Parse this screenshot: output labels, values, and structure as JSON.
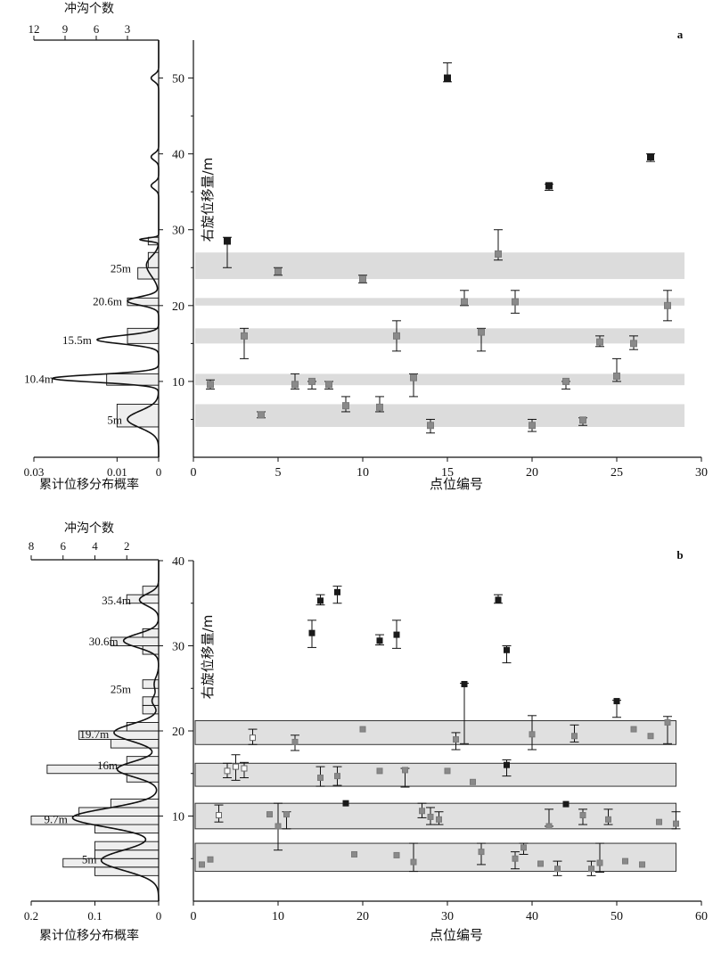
{
  "chart_data": [
    {
      "panel_label": "a",
      "type": "scatter",
      "xlabel": "点位编号",
      "ylabel": "右旋位移量/m",
      "xlim": [
        0,
        30
      ],
      "ylim": [
        0,
        55
      ],
      "x_ticks": [
        0,
        5,
        10,
        15,
        20,
        25,
        30
      ],
      "y_ticks": [
        10,
        20,
        30,
        40,
        50
      ],
      "bands": [
        [
          4,
          7
        ],
        [
          9.5,
          11
        ],
        [
          15,
          17
        ],
        [
          20,
          21
        ],
        [
          23.5,
          27
        ]
      ],
      "band_x_range": [
        0,
        29
      ],
      "series": [
        {
          "marker": "gray-square",
          "points": [
            {
              "x": 1,
              "y": 9.6,
              "lo": 9.0,
              "hi": 10.2
            },
            {
              "x": 3,
              "y": 16.0,
              "lo": 13.0,
              "hi": 17.0
            },
            {
              "x": 4,
              "y": 5.6,
              "lo": 5.2,
              "hi": 6.0
            },
            {
              "x": 5,
              "y": 24.5,
              "lo": 24.0,
              "hi": 25.0
            },
            {
              "x": 6,
              "y": 9.6,
              "lo": 9.0,
              "hi": 11.0
            },
            {
              "x": 7,
              "y": 10.0,
              "lo": 9.0,
              "hi": 10.0
            },
            {
              "x": 8,
              "y": 9.6,
              "lo": 9.0,
              "hi": 10.0
            },
            {
              "x": 9,
              "y": 6.8,
              "lo": 6.0,
              "hi": 8.0
            },
            {
              "x": 10,
              "y": 23.5,
              "lo": 23.0,
              "hi": 24.0
            },
            {
              "x": 11,
              "y": 6.6,
              "lo": 6.0,
              "hi": 8.0
            },
            {
              "x": 12,
              "y": 16.0,
              "lo": 14.0,
              "hi": 18.0
            },
            {
              "x": 13,
              "y": 10.5,
              "lo": 8.0,
              "hi": 11.0
            },
            {
              "x": 14,
              "y": 4.2,
              "lo": 3.2,
              "hi": 5.0
            },
            {
              "x": 16,
              "y": 20.5,
              "lo": 20.0,
              "hi": 22.0
            },
            {
              "x": 17,
              "y": 16.5,
              "lo": 14.0,
              "hi": 17.0
            },
            {
              "x": 18,
              "y": 26.8,
              "lo": 26.0,
              "hi": 30.0
            },
            {
              "x": 19,
              "y": 20.5,
              "lo": 19.0,
              "hi": 22.0
            },
            {
              "x": 20,
              "y": 4.2,
              "lo": 3.4,
              "hi": 5.0
            },
            {
              "x": 22,
              "y": 10.0,
              "lo": 9.0,
              "hi": 10.0
            },
            {
              "x": 23,
              "y": 4.9,
              "lo": 4.2,
              "hi": 5.2
            },
            {
              "x": 24,
              "y": 15.2,
              "lo": 14.6,
              "hi": 16.0
            },
            {
              "x": 25,
              "y": 10.7,
              "lo": 10.0,
              "hi": 13.0
            },
            {
              "x": 26,
              "y": 15.0,
              "lo": 14.2,
              "hi": 16.0
            },
            {
              "x": 28,
              "y": 20.0,
              "lo": 18.0,
              "hi": 22.0
            }
          ]
        },
        {
          "marker": "black-square",
          "points": [
            {
              "x": 2,
              "y": 28.5,
              "lo": 25.0,
              "hi": 29.0
            },
            {
              "x": 15,
              "y": 50.0,
              "lo": 49.5,
              "hi": 52.0
            },
            {
              "x": 21,
              "y": 35.8,
              "lo": 35.2,
              "hi": 36.0
            },
            {
              "x": 27,
              "y": 39.6,
              "lo": 39.0,
              "hi": 40.0
            }
          ]
        }
      ],
      "side_plot": {
        "top_axis_label": "冲沟个数",
        "bottom_axis_label": "累计位移分布概率",
        "top_ticks": [
          12,
          9,
          6,
          3
        ],
        "bottom_ticks": [
          "0.03",
          "0.01",
          "0"
        ],
        "bottom_tick_values": [
          0.03,
          0.01,
          0
        ],
        "bottom_max": 0.03,
        "top_max": 12,
        "histogram": [
          {
            "from": 4,
            "to": 7,
            "count": 4
          },
          {
            "from": 9.5,
            "to": 11,
            "count": 5
          },
          {
            "from": 15,
            "to": 17,
            "count": 3
          },
          {
            "from": 20,
            "to": 21,
            "count": 3
          },
          {
            "from": 23.5,
            "to": 25,
            "count": 2
          },
          {
            "from": 25,
            "to": 27,
            "count": 1
          },
          {
            "from": 28,
            "to": 29,
            "count": 1
          }
        ],
        "peaks": [
          {
            "center": 5,
            "height": 0.0075,
            "width": 1.1
          },
          {
            "center": 10.4,
            "height": 0.0255,
            "width": 0.5
          },
          {
            "center": 15.5,
            "height": 0.0148,
            "width": 0.55
          },
          {
            "center": 20.6,
            "height": 0.0075,
            "width": 0.55
          },
          {
            "center": 24.5,
            "height": 0.0018,
            "width": 1.1
          },
          {
            "center": 25.8,
            "height": 0.0018,
            "width": 0.9
          },
          {
            "center": 28.7,
            "height": 0.0045,
            "width": 0.2
          },
          {
            "center": 35.8,
            "height": 0.0018,
            "width": 0.45
          },
          {
            "center": 39.6,
            "height": 0.0018,
            "width": 0.45
          },
          {
            "center": 50,
            "height": 0.0018,
            "width": 0.45
          }
        ],
        "peak_labels": [
          "25m",
          "20.6m",
          "15.5m",
          "10.4m",
          "5m"
        ],
        "peak_label_values": [
          25,
          20.6,
          15.5,
          10.4,
          5
        ]
      }
    },
    {
      "panel_label": "b",
      "type": "scatter",
      "xlabel": "点位编号",
      "ylabel": "右旋位移量/m",
      "xlim": [
        0,
        60
      ],
      "ylim": [
        0,
        40
      ],
      "x_ticks": [
        0,
        10,
        20,
        30,
        40,
        50,
        60
      ],
      "y_ticks": [
        10,
        20,
        30,
        40
      ],
      "bands": [
        [
          3.5,
          6.8
        ],
        [
          8.5,
          11.5
        ],
        [
          13.5,
          16.2
        ],
        [
          18.4,
          21.2
        ]
      ],
      "band_x_range": [
        0,
        57
      ],
      "series": [
        {
          "marker": "gray-square",
          "points": [
            {
              "x": 1,
              "y": 4.3
            },
            {
              "x": 2,
              "y": 4.9
            },
            {
              "x": 9,
              "y": 10.2
            },
            {
              "x": 10,
              "y": 8.8,
              "lo": 6,
              "hi": 11.5
            },
            {
              "x": 11,
              "y": 10.2,
              "lo": 8.5,
              "hi": 10.5
            },
            {
              "x": 12,
              "y": 18.7,
              "lo": 17.7,
              "hi": 19.5
            },
            {
              "x": 15,
              "y": 14.5,
              "lo": 13.5,
              "hi": 15.8
            },
            {
              "x": 17,
              "y": 14.7,
              "lo": 13.6,
              "hi": 15.8
            },
            {
              "x": 19,
              "y": 5.5
            },
            {
              "x": 20,
              "y": 20.2
            },
            {
              "x": 22,
              "y": 15.3
            },
            {
              "x": 24,
              "y": 5.4
            },
            {
              "x": 25,
              "y": 15.4,
              "lo": 13.4,
              "hi": 15.6
            },
            {
              "x": 26,
              "y": 4.6,
              "lo": 3.5,
              "hi": 6.8
            },
            {
              "x": 27,
              "y": 10.6,
              "lo": 9.8,
              "hi": 11.5
            },
            {
              "x": 28,
              "y": 9.9,
              "lo": 9,
              "hi": 11
            },
            {
              "x": 29,
              "y": 9.6,
              "lo": 9,
              "hi": 10.5
            },
            {
              "x": 30,
              "y": 15.3
            },
            {
              "x": 31,
              "y": 19.0,
              "lo": 17.8,
              "hi": 19.8
            },
            {
              "x": 33,
              "y": 14.0
            },
            {
              "x": 34,
              "y": 5.8,
              "lo": 4.3,
              "hi": 6.8
            },
            {
              "x": 38,
              "y": 5.0,
              "lo": 3.8,
              "hi": 5.8
            },
            {
              "x": 39,
              "y": 6.3,
              "lo": 5.5,
              "hi": 6.8
            },
            {
              "x": 40,
              "y": 19.6,
              "lo": 17.8,
              "hi": 21.8
            },
            {
              "x": 41,
              "y": 4.4
            },
            {
              "x": 42,
              "y": 8.8,
              "lo": 8.8,
              "hi": 10.8
            },
            {
              "x": 43,
              "y": 3.8,
              "lo": 3.0,
              "hi": 4.7
            },
            {
              "x": 45,
              "y": 19.4,
              "lo": 18.7,
              "hi": 20.7
            },
            {
              "x": 46,
              "y": 10.1,
              "lo": 9.0,
              "hi": 10.8
            },
            {
              "x": 47,
              "y": 3.8,
              "lo": 3.0,
              "hi": 4.7
            },
            {
              "x": 48,
              "y": 4.5,
              "lo": 3.4,
              "hi": 6.8
            },
            {
              "x": 49,
              "y": 9.6,
              "lo": 9.0,
              "hi": 10.8
            },
            {
              "x": 51,
              "y": 4.7
            },
            {
              "x": 52,
              "y": 20.2
            },
            {
              "x": 53,
              "y": 4.3
            },
            {
              "x": 54,
              "y": 19.4
            },
            {
              "x": 55,
              "y": 9.3
            },
            {
              "x": 56,
              "y": 21.0,
              "lo": 18.5,
              "hi": 21.7
            },
            {
              "x": 57,
              "y": 9.1,
              "lo": 8.5,
              "hi": 10.5
            }
          ]
        },
        {
          "marker": "open-square",
          "points": [
            {
              "x": 3,
              "y": 10.1,
              "lo": 9.3,
              "hi": 11.3
            },
            {
              "x": 4,
              "y": 15.3,
              "lo": 14.5,
              "hi": 16.2
            },
            {
              "x": 5,
              "y": 15.8,
              "lo": 14.2,
              "hi": 17.2
            },
            {
              "x": 6,
              "y": 15.6,
              "lo": 14.5,
              "hi": 16.3
            },
            {
              "x": 7,
              "y": 19.2,
              "lo": 18.4,
              "hi": 20.2
            }
          ]
        },
        {
          "marker": "black-square",
          "points": [
            {
              "x": 14,
              "y": 31.5,
              "lo": 29.8,
              "hi": 33.0
            },
            {
              "x": 15,
              "y": 35.3,
              "lo": 34.8,
              "hi": 36.0
            },
            {
              "x": 17,
              "y": 36.3,
              "lo": 35.0,
              "hi": 37.0
            },
            {
              "x": 18,
              "y": 11.5
            },
            {
              "x": 22,
              "y": 30.6,
              "lo": 30.1,
              "hi": 31.3
            },
            {
              "x": 24,
              "y": 31.3,
              "lo": 29.7,
              "hi": 33.0
            },
            {
              "x": 32,
              "y": 25.5,
              "lo": 18.5,
              "hi": 25.6
            },
            {
              "x": 36,
              "y": 35.4,
              "lo": 35.0,
              "hi": 36.0
            },
            {
              "x": 37,
              "y": 29.5,
              "lo": 28.0,
              "hi": 30.0
            },
            {
              "x": 37,
              "y": 16.0,
              "lo": 14.7,
              "hi": 16.6
            },
            {
              "x": 44,
              "y": 11.4
            },
            {
              "x": 50,
              "y": 23.5,
              "lo": 21.6,
              "hi": 23.6
            }
          ]
        }
      ],
      "side_plot": {
        "top_axis_label": "冲沟个数",
        "bottom_axis_label": "累计位移分布概率",
        "top_ticks": [
          8,
          6,
          4,
          2
        ],
        "bottom_ticks": [
          "0.2",
          "0.1",
          "0"
        ],
        "bottom_tick_values": [
          0.2,
          0.1,
          0
        ],
        "bottom_max": 0.2,
        "top_max": 8,
        "histogram": [
          {
            "from": 3,
            "to": 4,
            "count": 4
          },
          {
            "from": 4,
            "to": 5,
            "count": 6
          },
          {
            "from": 5,
            "to": 6,
            "count": 4
          },
          {
            "from": 6,
            "to": 7,
            "count": 4
          },
          {
            "from": 8,
            "to": 9,
            "count": 4
          },
          {
            "from": 9,
            "to": 10,
            "count": 8
          },
          {
            "from": 10,
            "to": 11,
            "count": 5
          },
          {
            "from": 11,
            "to": 12,
            "count": 3
          },
          {
            "from": 14,
            "to": 15,
            "count": 2
          },
          {
            "from": 15,
            "to": 16,
            "count": 7
          },
          {
            "from": 16,
            "to": 17,
            "count": 2
          },
          {
            "from": 18,
            "to": 19,
            "count": 3
          },
          {
            "from": 19,
            "to": 20,
            "count": 5
          },
          {
            "from": 20,
            "to": 21,
            "count": 2
          },
          {
            "from": 22,
            "to": 23,
            "count": 1
          },
          {
            "from": 23,
            "to": 24,
            "count": 1
          },
          {
            "from": 25,
            "to": 26,
            "count": 1
          },
          {
            "from": 29,
            "to": 30,
            "count": 1
          },
          {
            "from": 30,
            "to": 31,
            "count": 3
          },
          {
            "from": 31,
            "to": 32,
            "count": 1
          },
          {
            "from": 35,
            "to": 36,
            "count": 2
          },
          {
            "from": 36,
            "to": 37,
            "count": 1
          }
        ],
        "peaks": [
          {
            "center": 4.8,
            "height": 0.09,
            "width": 1.2
          },
          {
            "center": 9.8,
            "height": 0.135,
            "width": 1.1
          },
          {
            "center": 15.5,
            "height": 0.065,
            "width": 0.9
          },
          {
            "center": 19.8,
            "height": 0.07,
            "width": 1.0
          },
          {
            "center": 23.5,
            "height": 0.01,
            "width": 0.6
          },
          {
            "center": 25.5,
            "height": 0.007,
            "width": 0.8
          },
          {
            "center": 30.6,
            "height": 0.055,
            "width": 0.8
          },
          {
            "center": 35.4,
            "height": 0.03,
            "width": 0.7
          }
        ],
        "peak_labels": [
          "35.4m",
          "30.6m",
          "25m",
          "19.7m",
          "16m",
          "9.7m",
          "5m"
        ],
        "peak_label_values": [
          35.4,
          30.6,
          25,
          19.7,
          16,
          9.7,
          5
        ]
      }
    }
  ]
}
